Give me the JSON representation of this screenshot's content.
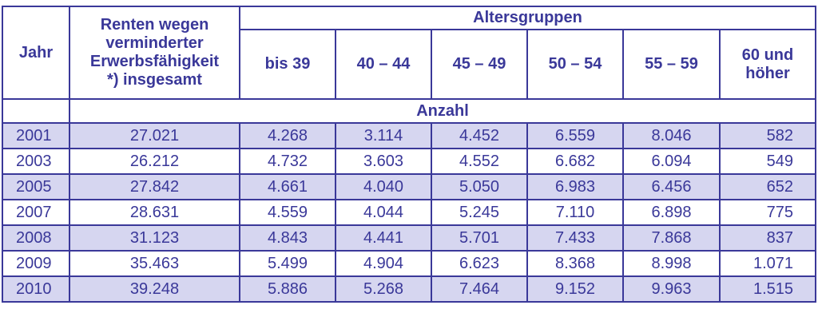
{
  "table": {
    "header": {
      "jahr": "Jahr",
      "total": [
        "Renten wegen",
        "verminderter",
        "Erwerbsfähigkeit",
        "*) insgesamt"
      ],
      "altersgruppen": "Altersgruppen",
      "groups": [
        "bis 39",
        "40 – 44",
        "45 – 49",
        "50 – 54",
        "55 – 59",
        "60 und höher"
      ],
      "groups_last_lines": [
        "60 und",
        "höher"
      ],
      "unit": "Anzahl"
    },
    "rows": [
      {
        "year": "2001",
        "values": [
          "27.021",
          "4.268",
          "3.114",
          "4.452",
          "6.559",
          "8.046",
          "582"
        ]
      },
      {
        "year": "2003",
        "values": [
          "26.212",
          "4.732",
          "3.603",
          "4.552",
          "6.682",
          "6.094",
          "549"
        ]
      },
      {
        "year": "2005",
        "values": [
          "27.842",
          "4.661",
          "4.040",
          "5.050",
          "6.983",
          "6.456",
          "652"
        ]
      },
      {
        "year": "2007",
        "values": [
          "28.631",
          "4.559",
          "4.044",
          "5.245",
          "7.110",
          "6.898",
          "775"
        ]
      },
      {
        "year": "2008",
        "values": [
          "31.123",
          "4.843",
          "4.441",
          "5.701",
          "7.433",
          "7.868",
          "837"
        ]
      },
      {
        "year": "2009",
        "values": [
          "35.463",
          "5.499",
          "4.904",
          "6.623",
          "8.368",
          "8.998",
          "1.071"
        ]
      },
      {
        "year": "2010",
        "values": [
          "39.248",
          "5.886",
          "5.268",
          "7.464",
          "9.152",
          "9.963",
          "1.515"
        ]
      }
    ]
  }
}
